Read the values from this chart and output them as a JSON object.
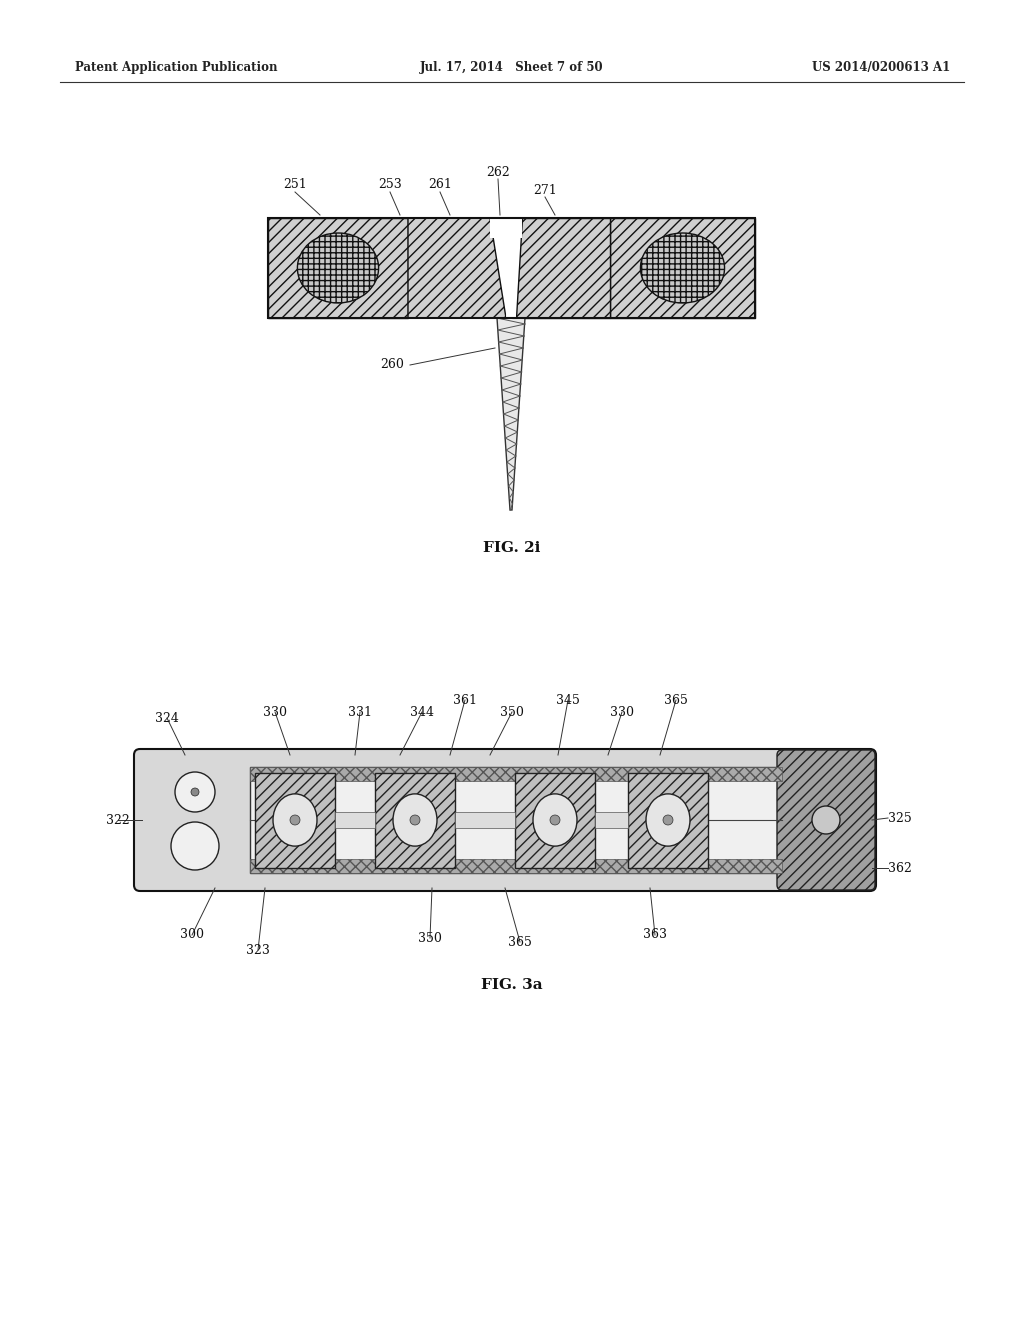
{
  "bg_color": "#ffffff",
  "header_left": "Patent Application Publication",
  "header_center": "Jul. 17, 2014   Sheet 7 of 50",
  "header_right": "US 2014/0200613 A1",
  "fig2i_label": "FIG. 2i",
  "fig3a_label": "FIG. 3a"
}
